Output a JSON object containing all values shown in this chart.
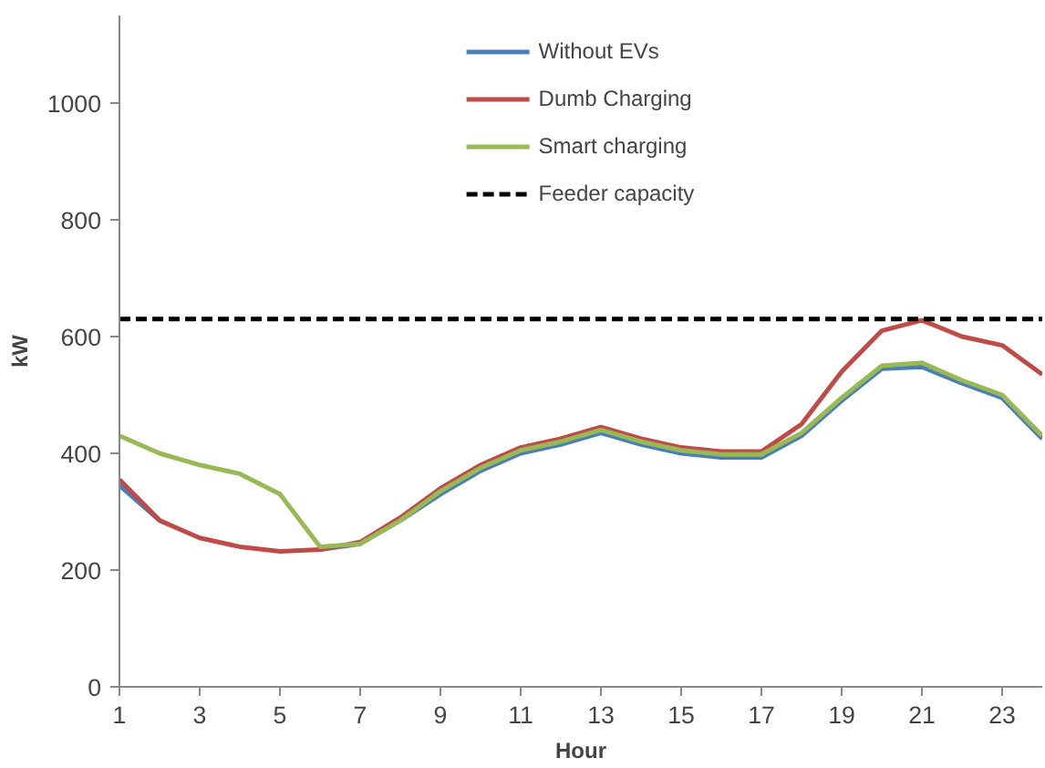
{
  "chart_data": {
    "type": "line",
    "xlabel": "Hour",
    "ylabel": "kW",
    "x": [
      1,
      2,
      3,
      4,
      5,
      6,
      7,
      8,
      9,
      10,
      11,
      12,
      13,
      14,
      15,
      16,
      17,
      18,
      19,
      20,
      21,
      22,
      23,
      24
    ],
    "xlim": [
      1,
      24
    ],
    "xticks": [
      1,
      3,
      5,
      7,
      9,
      11,
      13,
      15,
      17,
      19,
      21,
      23
    ],
    "ylim": [
      0,
      1150
    ],
    "yticks": [
      0,
      200,
      400,
      600,
      800,
      1000
    ],
    "grid": false,
    "legend": "top",
    "marker": "none",
    "series": [
      {
        "name": "Without EVs",
        "color": "#4a7ebb",
        "values": [
          345,
          285,
          null,
          null,
          null,
          235,
          245,
          285,
          330,
          370,
          400,
          415,
          435,
          415,
          400,
          393,
          393,
          430,
          490,
          545,
          548,
          520,
          495,
          425
        ]
      },
      {
        "name": "Dumb Charging",
        "color": "#be4b48",
        "values": [
          355,
          285,
          255,
          240,
          232,
          235,
          248,
          290,
          340,
          380,
          410,
          425,
          445,
          425,
          410,
          403,
          403,
          450,
          540,
          610,
          628,
          600,
          585,
          535
        ]
      },
      {
        "name": "Smart charging",
        "color": "#98b954",
        "values": [
          430,
          400,
          380,
          365,
          330,
          240,
          245,
          285,
          335,
          375,
          405,
          420,
          440,
          420,
          405,
          398,
          398,
          435,
          495,
          550,
          555,
          525,
          500,
          430
        ]
      },
      {
        "name": "Feeder capacity",
        "color": "#000000",
        "line_style": "dashed",
        "values": [
          630,
          630,
          630,
          630,
          630,
          630,
          630,
          630,
          630,
          630,
          630,
          630,
          630,
          630,
          630,
          630,
          630,
          630,
          630,
          630,
          630,
          630,
          630,
          630
        ]
      }
    ]
  }
}
